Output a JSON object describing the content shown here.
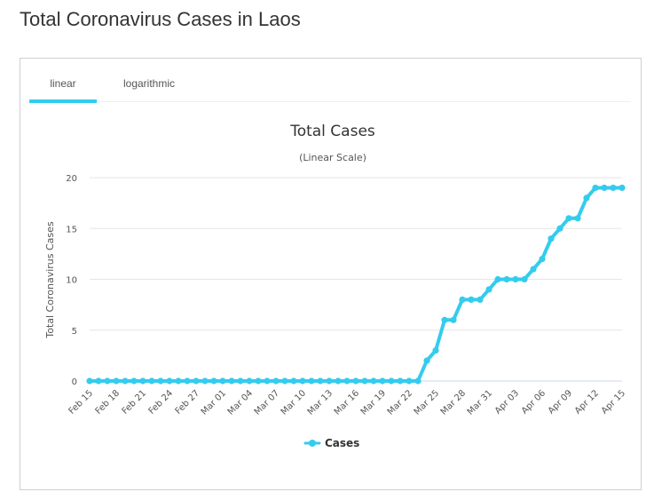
{
  "page": {
    "title": "Total Coronavirus Cases in Laos"
  },
  "tabs": [
    {
      "label": "linear",
      "active": true
    },
    {
      "label": "logarithmic",
      "active": false
    }
  ],
  "colors": {
    "series": "#33ccee",
    "grid": "#e6e6e6",
    "tab_underline": "#33ccee"
  },
  "chart_data": {
    "type": "line",
    "title": "Total Cases",
    "subtitle": "(Linear Scale)",
    "xlabel": "",
    "ylabel": "Total Coronavirus Cases",
    "ylim": [
      0,
      20
    ],
    "yticks": [
      0,
      5,
      10,
      15,
      20
    ],
    "grid": true,
    "legend_position": "bottom-center",
    "categories": [
      "Feb 15",
      "Feb 16",
      "Feb 17",
      "Feb 18",
      "Feb 19",
      "Feb 20",
      "Feb 21",
      "Feb 22",
      "Feb 23",
      "Feb 24",
      "Feb 25",
      "Feb 26",
      "Feb 27",
      "Feb 28",
      "Feb 29",
      "Mar 01",
      "Mar 02",
      "Mar 03",
      "Mar 04",
      "Mar 05",
      "Mar 06",
      "Mar 07",
      "Mar 08",
      "Mar 09",
      "Mar 10",
      "Mar 11",
      "Mar 12",
      "Mar 13",
      "Mar 14",
      "Mar 15",
      "Mar 16",
      "Mar 17",
      "Mar 18",
      "Mar 19",
      "Mar 20",
      "Mar 21",
      "Mar 22",
      "Mar 23",
      "Mar 24",
      "Mar 25",
      "Mar 26",
      "Mar 27",
      "Mar 28",
      "Mar 29",
      "Mar 30",
      "Mar 31",
      "Apr 01",
      "Apr 02",
      "Apr 03",
      "Apr 04",
      "Apr 05",
      "Apr 06",
      "Apr 07",
      "Apr 08",
      "Apr 09",
      "Apr 10",
      "Apr 11",
      "Apr 12",
      "Apr 13",
      "Apr 14",
      "Apr 15"
    ],
    "x_tick_labels": [
      "Feb 15",
      "Feb 18",
      "Feb 21",
      "Feb 24",
      "Feb 27",
      "Mar 01",
      "Mar 04",
      "Mar 07",
      "Mar 10",
      "Mar 13",
      "Mar 16",
      "Mar 19",
      "Mar 22",
      "Mar 25",
      "Mar 28",
      "Mar 31",
      "Apr 03",
      "Apr 06",
      "Apr 09",
      "Apr 12",
      "Apr 15"
    ],
    "series": [
      {
        "name": "Cases",
        "values": [
          0,
          0,
          0,
          0,
          0,
          0,
          0,
          0,
          0,
          0,
          0,
          0,
          0,
          0,
          0,
          0,
          0,
          0,
          0,
          0,
          0,
          0,
          0,
          0,
          0,
          0,
          0,
          0,
          0,
          0,
          0,
          0,
          0,
          0,
          0,
          0,
          0,
          0,
          2,
          3,
          6,
          6,
          8,
          8,
          8,
          9,
          10,
          10,
          10,
          10,
          11,
          12,
          14,
          15,
          16,
          16,
          18,
          19,
          19,
          19,
          19
        ]
      }
    ]
  }
}
